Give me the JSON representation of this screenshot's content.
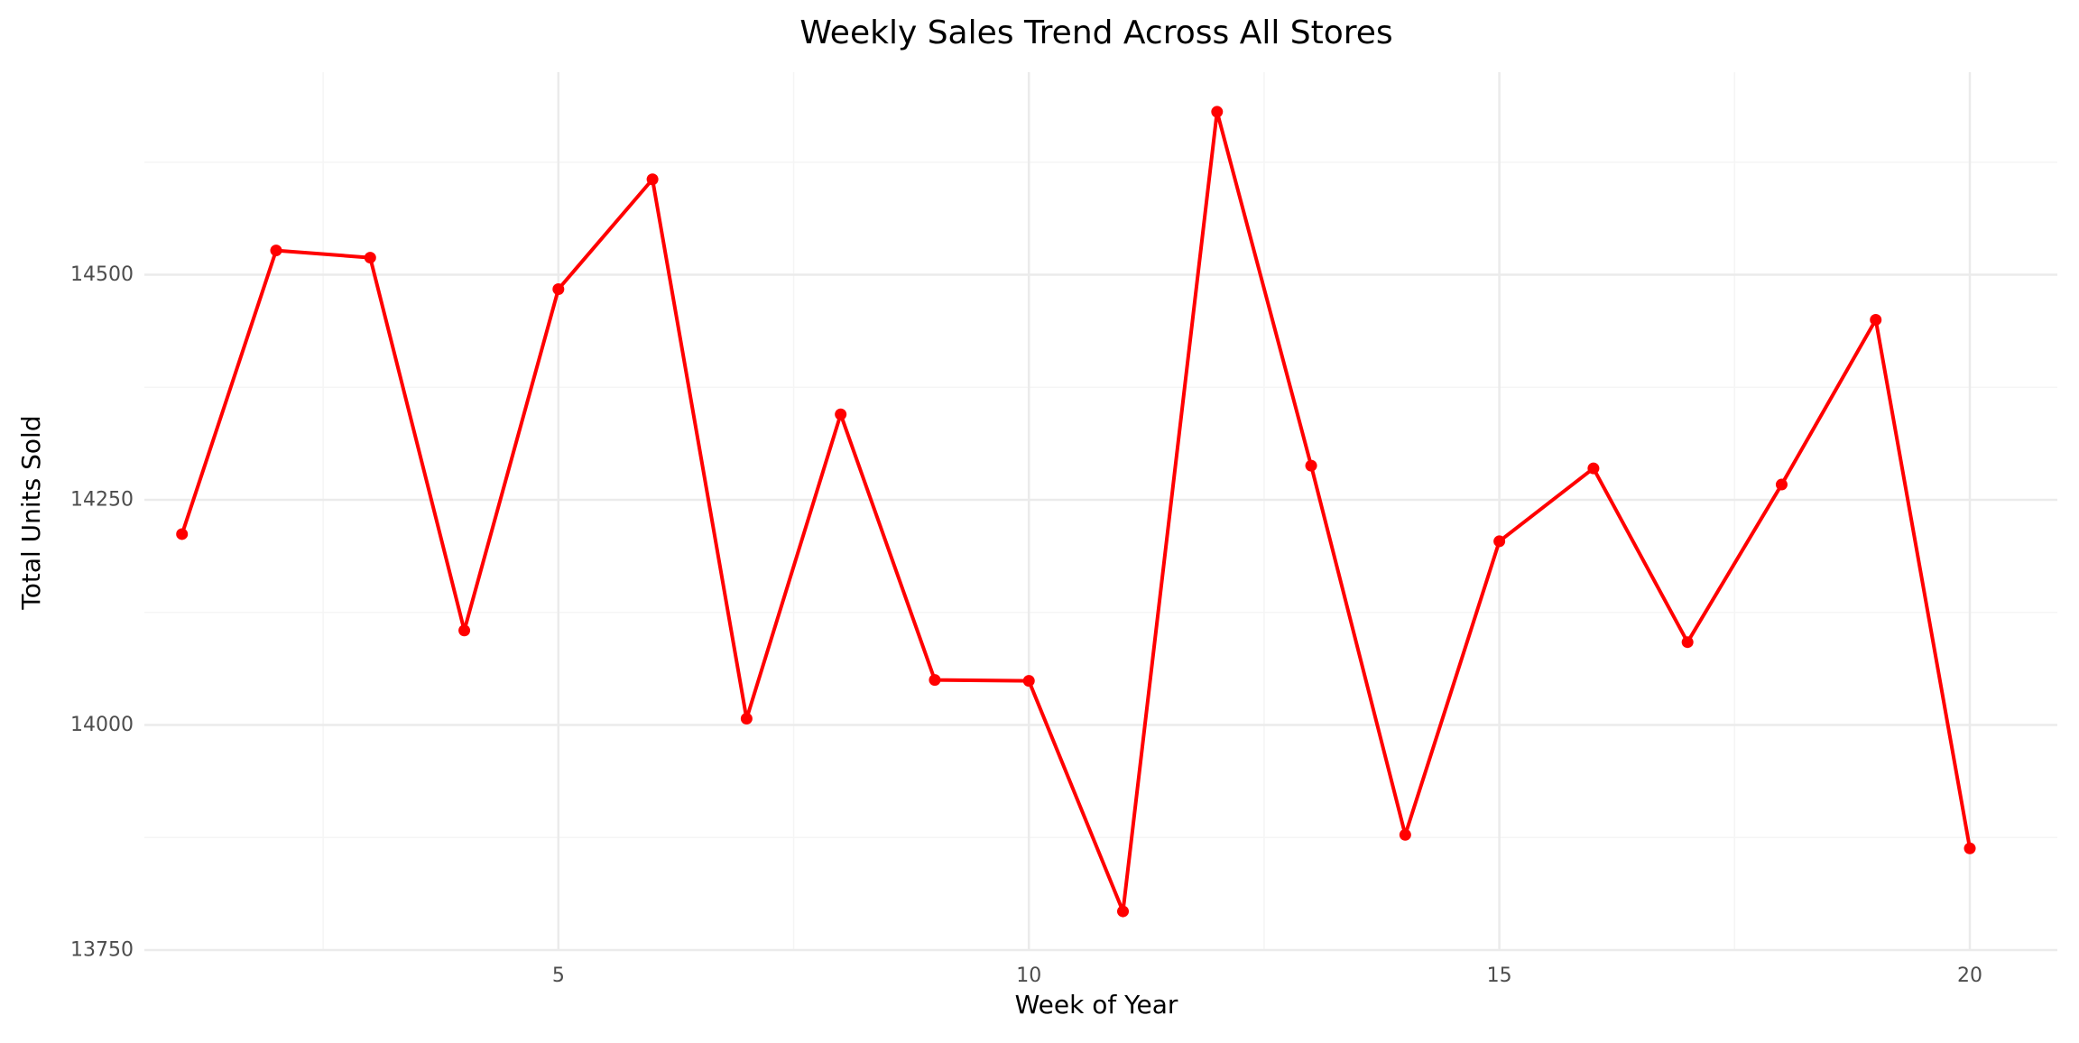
{
  "chart_data": {
    "type": "line",
    "title": "Weekly Sales Trend Across All Stores",
    "xlabel": "Week of Year",
    "ylabel": "Total Units Sold",
    "x": [
      1,
      2,
      3,
      4,
      5,
      6,
      7,
      8,
      9,
      10,
      11,
      12,
      13,
      14,
      15,
      16,
      17,
      18,
      19,
      20
    ],
    "series": [
      {
        "values": [
          14212,
          14527,
          14519,
          14105,
          14484,
          14606,
          14007,
          14345,
          14050,
          14049,
          13793,
          14681,
          14288,
          13878,
          14204,
          14285,
          14092,
          14267,
          14450,
          13863
        ]
      }
    ],
    "xlim": [
      0.6,
      20.93
    ],
    "ylim": [
      13750,
      14725
    ],
    "xticks": [
      5,
      10,
      15,
      20
    ],
    "yticks": [
      13750,
      14000,
      14250,
      14500
    ],
    "grid": true,
    "line_color": "#ff0000",
    "point_color": "#ff0000",
    "grid_color": "#ebebeb",
    "minor_grid_color": "#f5f5f5"
  }
}
